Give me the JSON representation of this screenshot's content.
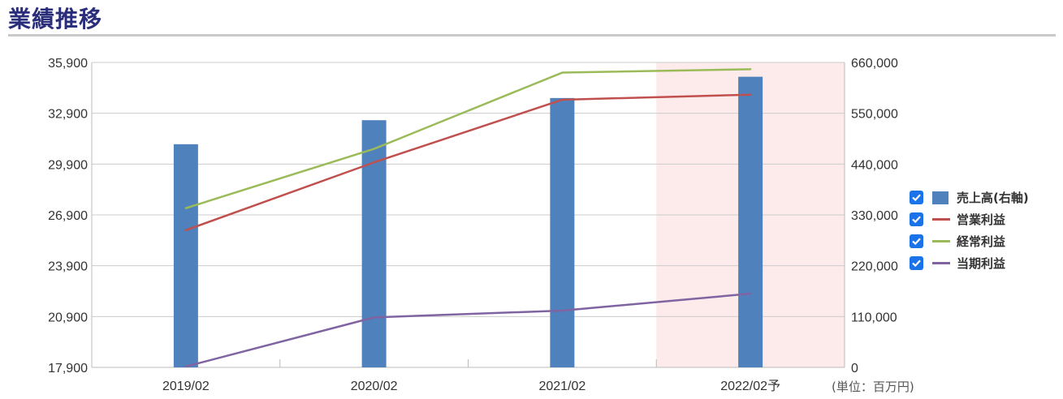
{
  "page": {
    "title": "業績推移"
  },
  "unit_note": "(単位：百万円)",
  "legend": [
    {
      "label": "売上高(右軸)",
      "color": "#4f81bd",
      "kind": "bar",
      "checked": true
    },
    {
      "label": "営業利益",
      "color": "#c0504d",
      "kind": "line",
      "checked": true
    },
    {
      "label": "経常利益",
      "color": "#9bbb59",
      "kind": "line",
      "checked": true
    },
    {
      "label": "当期利益",
      "color": "#8064a2",
      "kind": "line",
      "checked": true
    }
  ],
  "chart_data": {
    "type": "bar",
    "categories": [
      "2019/02",
      "2020/02",
      "2021/02",
      "2022/02予"
    ],
    "forecast_category_index": 3,
    "forecast_shade_color": "#fdeaea",
    "grid": true,
    "legend_position": "right",
    "left_axis": {
      "min": 17900,
      "max": 35900,
      "ticks": [
        "17,900",
        "20,900",
        "23,900",
        "26,900",
        "29,900",
        "32,900",
        "35,900"
      ]
    },
    "right_axis": {
      "min": 0,
      "max": 660000,
      "ticks": [
        "0",
        "110,000",
        "220,000",
        "330,000",
        "440,000",
        "550,000",
        "660,000"
      ]
    },
    "bars": {
      "name": "売上高(右軸)",
      "axis": "right",
      "color": "#4f81bd",
      "values": [
        483000,
        535000,
        583000,
        629000
      ]
    },
    "series": [
      {
        "name": "営業利益",
        "axis": "left",
        "color": "#c0504d",
        "values": [
          26000,
          30000,
          33700,
          34000
        ]
      },
      {
        "name": "経常利益",
        "axis": "left",
        "color": "#9bbb59",
        "values": [
          27300,
          30800,
          35300,
          35500
        ]
      },
      {
        "name": "当期利益",
        "axis": "left",
        "color": "#8064a2",
        "values": [
          17950,
          20850,
          21250,
          22250
        ]
      }
    ]
  }
}
